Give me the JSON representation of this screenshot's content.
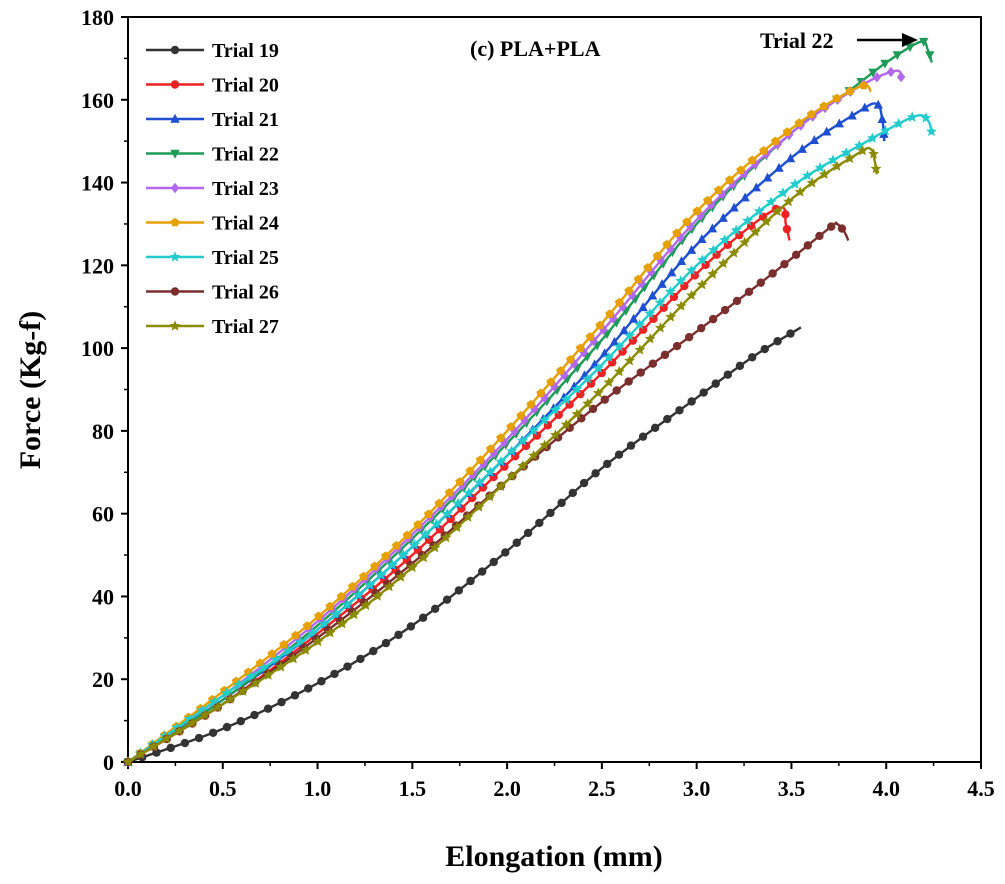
{
  "chart_data": {
    "type": "line",
    "title": "(c) PLA+PLA",
    "xlabel": "Elongation (mm)",
    "ylabel": "Force (Kg-f)",
    "xlim": [
      0,
      4.5
    ],
    "ylim": [
      0,
      180
    ],
    "xticks": [
      "0.0",
      "0.5",
      "1.0",
      "1.5",
      "2.0",
      "2.5",
      "3.0",
      "3.5",
      "4.0",
      "4.5"
    ],
    "yticks": [
      "0",
      "20",
      "40",
      "60",
      "80",
      "100",
      "120",
      "140",
      "160",
      "180"
    ],
    "legend_position": "top-left",
    "annotation": {
      "text": "Trial 22",
      "target": [
        4.18,
        174
      ]
    },
    "series": [
      {
        "name": "Trial 19",
        "color": "#333333",
        "marker": "circle",
        "points": [
          [
            0,
            0
          ],
          [
            0.5,
            8
          ],
          [
            1.0,
            19
          ],
          [
            1.5,
            33
          ],
          [
            2.0,
            51
          ],
          [
            2.5,
            71
          ],
          [
            3.0,
            88
          ],
          [
            3.3,
            98
          ],
          [
            3.55,
            105
          ]
        ]
      },
      {
        "name": "Trial 20",
        "color": "#ee2222",
        "marker": "circle",
        "points": [
          [
            0,
            0
          ],
          [
            0.5,
            14
          ],
          [
            1.0,
            31
          ],
          [
            1.5,
            50
          ],
          [
            2.0,
            72
          ],
          [
            2.5,
            94
          ],
          [
            3.0,
            118
          ],
          [
            3.3,
            130
          ],
          [
            3.45,
            134
          ],
          [
            3.47,
            130
          ],
          [
            3.49,
            126
          ]
        ]
      },
      {
        "name": "Trial 21",
        "color": "#1f4fd1",
        "marker": "triangle",
        "points": [
          [
            0,
            0
          ],
          [
            0.5,
            15
          ],
          [
            1.0,
            32
          ],
          [
            1.5,
            52
          ],
          [
            2.0,
            74
          ],
          [
            2.5,
            98
          ],
          [
            3.0,
            125
          ],
          [
            3.5,
            146
          ],
          [
            3.85,
            157
          ],
          [
            3.95,
            159
          ],
          [
            3.98,
            155
          ],
          [
            3.99,
            150
          ]
        ]
      },
      {
        "name": "Trial 22",
        "color": "#1e9b57",
        "marker": "triangle-down",
        "points": [
          [
            0,
            0
          ],
          [
            0.5,
            15
          ],
          [
            1.0,
            33
          ],
          [
            1.5,
            54
          ],
          [
            2.0,
            77
          ],
          [
            2.5,
            102
          ],
          [
            3.0,
            130
          ],
          [
            3.5,
            152
          ],
          [
            3.8,
            162
          ],
          [
            4.0,
            169
          ],
          [
            4.18,
            174
          ],
          [
            4.22,
            172
          ],
          [
            4.24,
            169
          ]
        ]
      },
      {
        "name": "Trial 23",
        "color": "#b366ee",
        "marker": "diamond",
        "points": [
          [
            0,
            0
          ],
          [
            0.5,
            16
          ],
          [
            1.0,
            34
          ],
          [
            1.5,
            55
          ],
          [
            2.0,
            78
          ],
          [
            2.5,
            104
          ],
          [
            3.0,
            131
          ],
          [
            3.5,
            152
          ],
          [
            3.85,
            163
          ],
          [
            4.05,
            167
          ],
          [
            4.08,
            165
          ]
        ]
      },
      {
        "name": "Trial 24",
        "color": "#e6a000",
        "marker": "pentagon",
        "points": [
          [
            0,
            0
          ],
          [
            0.5,
            17
          ],
          [
            1.0,
            35
          ],
          [
            1.5,
            56
          ],
          [
            2.0,
            80
          ],
          [
            2.5,
            106
          ],
          [
            3.0,
            133
          ],
          [
            3.5,
            153
          ],
          [
            3.85,
            163
          ],
          [
            3.92,
            162
          ]
        ]
      },
      {
        "name": "Trial 25",
        "color": "#22cccc",
        "marker": "star",
        "points": [
          [
            0,
            0
          ],
          [
            0.5,
            16
          ],
          [
            1.0,
            32
          ],
          [
            1.5,
            52
          ],
          [
            2.0,
            74
          ],
          [
            2.5,
            96
          ],
          [
            3.0,
            120
          ],
          [
            3.5,
            139
          ],
          [
            3.9,
            150
          ],
          [
            4.15,
            156
          ],
          [
            4.22,
            155
          ],
          [
            4.24,
            152
          ]
        ]
      },
      {
        "name": "Trial 26",
        "color": "#7a2e2e",
        "marker": "circle",
        "points": [
          [
            0,
            0
          ],
          [
            0.5,
            14
          ],
          [
            1.0,
            30
          ],
          [
            1.5,
            48
          ],
          [
            2.0,
            68
          ],
          [
            2.5,
            87
          ],
          [
            3.0,
            104
          ],
          [
            3.4,
            118
          ],
          [
            3.7,
            129
          ],
          [
            3.74,
            130
          ],
          [
            3.78,
            128
          ],
          [
            3.8,
            126
          ]
        ]
      },
      {
        "name": "Trial 27",
        "color": "#8b8b00",
        "marker": "star",
        "points": [
          [
            0,
            0
          ],
          [
            0.5,
            14
          ],
          [
            1.0,
            29
          ],
          [
            1.5,
            47
          ],
          [
            2.0,
            68
          ],
          [
            2.5,
            90
          ],
          [
            3.0,
            114
          ],
          [
            3.5,
            136
          ],
          [
            3.85,
            147
          ],
          [
            3.92,
            148
          ],
          [
            3.94,
            145
          ],
          [
            3.95,
            142
          ]
        ]
      }
    ]
  }
}
